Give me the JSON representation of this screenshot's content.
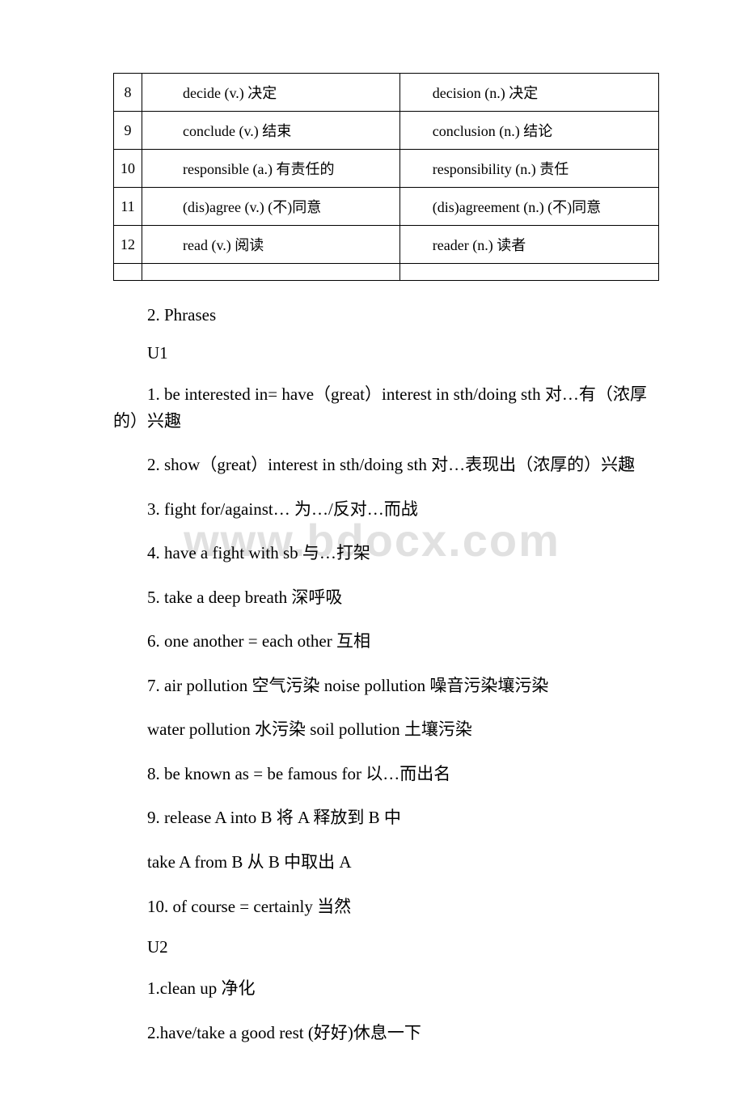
{
  "table": {
    "rows": [
      {
        "num": "8",
        "word": "decide (v.) 决定",
        "def": "decision (n.) 决定"
      },
      {
        "num": "9",
        "word": "conclude (v.) 结束",
        "def": "conclusion (n.) 结论"
      },
      {
        "num": "10",
        "word": "responsible (a.) 有责任的",
        "def": "responsibility (n.) 责任"
      },
      {
        "num": "11",
        "word": "(dis)agree (v.) (不)同意",
        "def": "(dis)agreement (n.) (不)同意"
      },
      {
        "num": "12",
        "word": "read (v.) 阅读",
        "def": "reader (n.) 读者"
      }
    ]
  },
  "sections": {
    "phrases_heading": "2. Phrases",
    "u1_heading": "U1",
    "u1_items": [
      "1. be interested in= have（great）interest in sth/doing sth 对…有（浓厚的）兴趣",
      "2. show（great）interest in sth/doing sth 对…表现出（浓厚的）兴趣",
      "3. fight for/against… 为…/反对…而战",
      "4. have a fight with sb 与…打架",
      "5. take a deep breath 深呼吸",
      "6. one another = each other 互相",
      "7. air pollution 空气污染 noise pollution 噪音污染壤污染",
      "water pollution 水污染 soil pollution 土壤污染",
      "8. be known as = be famous for 以…而出名",
      "9. release A into B 将 A 释放到 B 中",
      " take A from B 从 B 中取出 A",
      "10. of course = certainly 当然"
    ],
    "u2_heading": "U2",
    "u2_items": [
      "1.clean up 净化",
      " 2.have/take a good rest (好好)休息一下"
    ]
  },
  "watermark": "www.bdocx.com",
  "colors": {
    "text": "#000000",
    "border": "#000000",
    "background": "#ffffff",
    "watermark": "rgba(170,170,170,0.35)"
  }
}
